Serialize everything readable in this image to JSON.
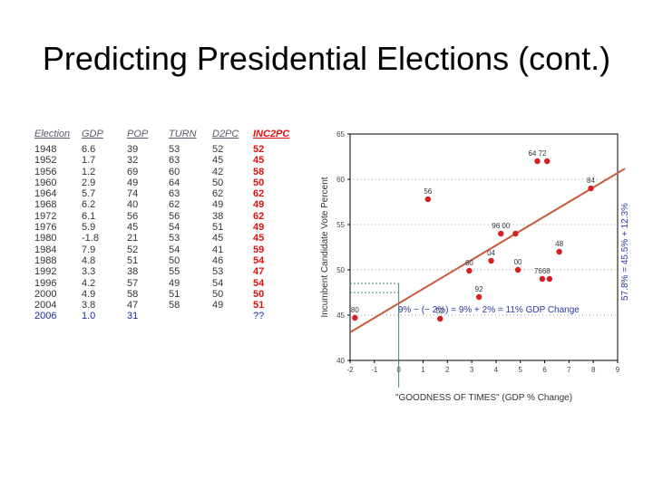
{
  "slide": {
    "title": "Predicting Presidential Elections (cont.)"
  },
  "table": {
    "headers": [
      "Election",
      "GDP",
      "POP",
      "TURN",
      "D2PC",
      "INC2PC"
    ],
    "rows": [
      [
        "1948",
        "6.6",
        "39",
        "53",
        "52",
        "52"
      ],
      [
        "1952",
        "1.7",
        "32",
        "63",
        "45",
        "45"
      ],
      [
        "1956",
        "1.2",
        "69",
        "60",
        "42",
        "58"
      ],
      [
        "1960",
        "2.9",
        "49",
        "64",
        "50",
        "50"
      ],
      [
        "1964",
        "5.7",
        "74",
        "63",
        "62",
        "62"
      ],
      [
        "1968",
        "6.2",
        "40",
        "62",
        "49",
        "49"
      ],
      [
        "1972",
        "6.1",
        "56",
        "56",
        "38",
        "62"
      ],
      [
        "1976",
        "5.9",
        "45",
        "54",
        "51",
        "49"
      ],
      [
        "1980",
        "-1.8",
        "21",
        "53",
        "45",
        "45"
      ],
      [
        "1984",
        "7.9",
        "52",
        "54",
        "41",
        "59"
      ],
      [
        "1988",
        "4.8",
        "51",
        "50",
        "46",
        "54"
      ],
      [
        "1992",
        "3.3",
        "38",
        "55",
        "53",
        "47"
      ],
      [
        "1996",
        "4.2",
        "57",
        "49",
        "54",
        "54"
      ],
      [
        "2000",
        "4.9",
        "58",
        "51",
        "50",
        "50"
      ],
      [
        "2004",
        "3.8",
        "47",
        "58",
        "49",
        "51"
      ]
    ],
    "highlight_row": [
      "2006",
      "1.0",
      "31",
      "",
      "",
      "??"
    ],
    "colors": {
      "header": "#5a5a6a",
      "inc_column": "#e01010",
      "highlight": "#1a2aa0"
    }
  },
  "chart_data": {
    "type": "scatter",
    "xlabel": "\"GOODNESS OF TIMES\" (GDP % Change)",
    "ylabel": "Incumbent Candidate Vote Percent",
    "xlim": [
      -2,
      9
    ],
    "ylim": [
      40,
      65
    ],
    "x_ticks": [
      "-2",
      "-1",
      "0",
      "1",
      "2",
      "3",
      "4",
      "5",
      "6",
      "7",
      "8",
      "9"
    ],
    "y_ticks": [
      "40",
      "45",
      "50",
      "55",
      "60",
      "65"
    ],
    "points": [
      {
        "x": -1.8,
        "y": 44.7,
        "label": "80"
      },
      {
        "x": 1.2,
        "y": 57.8,
        "label": "56"
      },
      {
        "x": 1.7,
        "y": 44.6,
        "label": "52"
      },
      {
        "x": 2.9,
        "y": 49.9,
        "label": "60"
      },
      {
        "x": 3.3,
        "y": 47.0,
        "label": "92"
      },
      {
        "x": 3.8,
        "y": 51.0,
        "label": "04"
      },
      {
        "x": 4.2,
        "y": 54.0,
        "label": "96 00"
      },
      {
        "x": 4.8,
        "y": 54.0,
        "label": ""
      },
      {
        "x": 4.9,
        "y": 50.0,
        "label": "00"
      },
      {
        "x": 5.7,
        "y": 62.0,
        "label": "64 72"
      },
      {
        "x": 6.1,
        "y": 62.0,
        "label": ""
      },
      {
        "x": 6.6,
        "y": 52.0,
        "label": "48"
      },
      {
        "x": 5.9,
        "y": 49.0,
        "label": "7668"
      },
      {
        "x": 6.2,
        "y": 49.0,
        "label": ""
      },
      {
        "x": 7.9,
        "y": 59.0,
        "label": "84"
      }
    ],
    "regression_label": "57.8% = 45.5% + 12.3%",
    "annotation": "9% − (− 2%) = 9% + 2% = 11% GDP Change",
    "reference_x": [
      -2,
      0
    ],
    "reference_y": [
      48.5,
      47.5
    ],
    "fit": {
      "intercept": 46.3,
      "slope": 1.6
    },
    "colors": {
      "points": "#d42020",
      "line": "#c85a3a",
      "axis": "#000000",
      "reference": "#3a8a7a",
      "annotation": "#2a3aa0",
      "grid": "#999999"
    }
  }
}
